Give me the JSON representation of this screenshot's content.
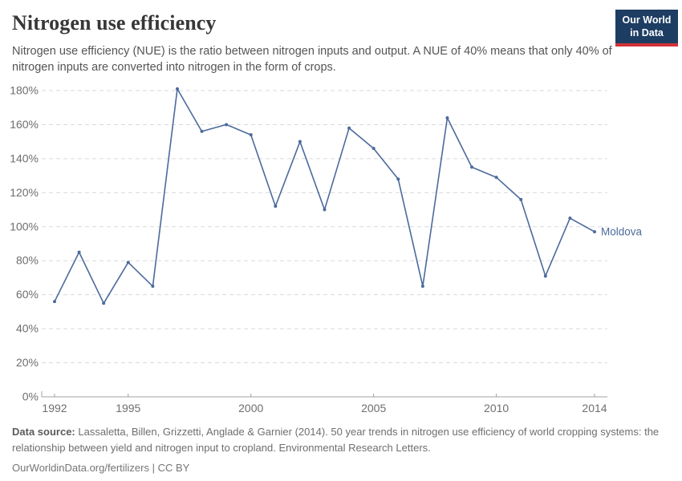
{
  "header": {
    "title": "Nitrogen use efficiency",
    "subtitle": "Nitrogen use efficiency (NUE) is the ratio between nitrogen inputs and output. A NUE of 40% means that only 40% of nitrogen inputs are converted into nitrogen in the form of crops.",
    "logo": {
      "line1": "Our World",
      "line2": "in Data",
      "bg_color": "#1d3d63",
      "accent_color": "#d13239"
    }
  },
  "chart_data": {
    "type": "line",
    "title": "Nitrogen use efficiency",
    "x": [
      1992,
      1993,
      1994,
      1995,
      1996,
      1997,
      1998,
      1999,
      2000,
      2001,
      2002,
      2003,
      2004,
      2005,
      2006,
      2007,
      2008,
      2009,
      2010,
      2011,
      2012,
      2013,
      2014
    ],
    "series": [
      {
        "name": "Moldova",
        "color": "#4c6a9c",
        "values": [
          56,
          85,
          55,
          79,
          65,
          181,
          156,
          160,
          154,
          112,
          150,
          110,
          158,
          146,
          128,
          65,
          164,
          135,
          129,
          116,
          71,
          105,
          97
        ]
      }
    ],
    "xticks": [
      1992,
      1995,
      2000,
      2005,
      2010,
      2014
    ],
    "yticks": [
      0,
      20,
      40,
      60,
      80,
      100,
      120,
      140,
      160,
      180
    ],
    "xlim": [
      1992,
      2014
    ],
    "ylim": [
      0,
      186
    ],
    "y_suffix": "%",
    "grid": "horizontal-dashed",
    "legend_position": "end-of-line",
    "gridline_color": "#d9d9d9",
    "axis_color": "#a1a1a1",
    "tick_label_color": "#6e6e6e"
  },
  "footer": {
    "datasource_label": "Data source:",
    "datasource_text": " Lassaletta, Billen, Grizzetti, Anglade & Garnier (2014). 50 year trends in nitrogen use efficiency of world cropping systems: the relationship between yield and nitrogen input to cropland. Environmental Research Letters.",
    "link_text": "OurWorldinData.org/fertilizers | CC BY"
  }
}
